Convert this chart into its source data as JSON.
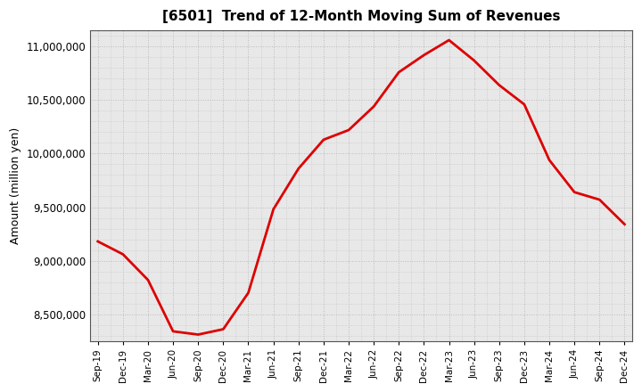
{
  "title": "[6501]  Trend of 12-Month Moving Sum of Revenues",
  "ylabel": "Amount (million yen)",
  "line_color": "#dd0000",
  "background_color": "#ffffff",
  "plot_bg_color": "#e8e8e8",
  "grid_color": "#bbbbbb",
  "ylim": [
    8250000,
    11150000
  ],
  "yticks": [
    8500000,
    9000000,
    9500000,
    10000000,
    10500000,
    11000000
  ],
  "x_labels": [
    "Sep-19",
    "Dec-19",
    "Mar-20",
    "Jun-20",
    "Sep-20",
    "Dec-20",
    "Mar-21",
    "Jun-21",
    "Sep-21",
    "Dec-21",
    "Mar-22",
    "Jun-22",
    "Sep-22",
    "Dec-22",
    "Mar-23",
    "Jun-23",
    "Sep-23",
    "Dec-23",
    "Mar-24",
    "Jun-24",
    "Sep-24",
    "Dec-24"
  ],
  "values": [
    9180000,
    9060000,
    8820000,
    8340000,
    8310000,
    8360000,
    8700000,
    9480000,
    9860000,
    10130000,
    10220000,
    10440000,
    10760000,
    10920000,
    11060000,
    10870000,
    10640000,
    10460000,
    9940000,
    9640000,
    9570000,
    9340000
  ]
}
